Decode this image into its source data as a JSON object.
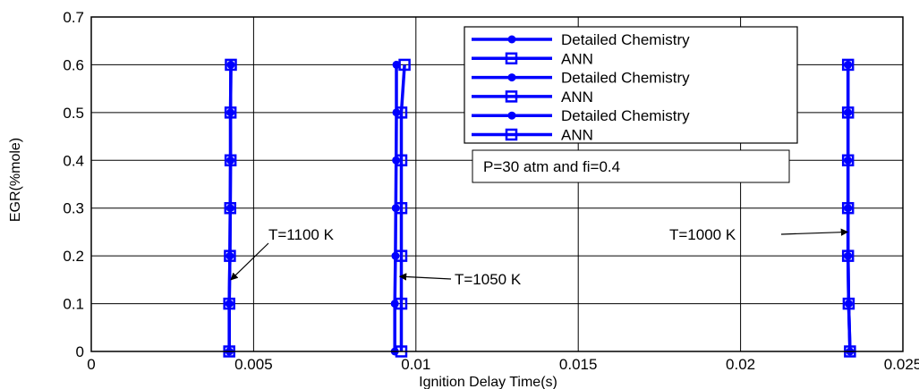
{
  "chart_data": {
    "type": "line",
    "title": "",
    "xlabel": "Ignition Delay Time(s)",
    "ylabel": "EGR(%mole)",
    "xlim": [
      0,
      0.025
    ],
    "ylim": [
      0,
      0.7
    ],
    "x_ticks": [
      0,
      0.005,
      0.01,
      0.015,
      0.02,
      0.025
    ],
    "x_tick_labels": [
      "0",
      "0.005",
      "0.01",
      "0.015",
      "0.02",
      "0.025"
    ],
    "y_ticks": [
      0,
      0.1,
      0.2,
      0.3,
      0.4,
      0.5,
      0.6,
      0.7
    ],
    "y_tick_labels": [
      "0",
      "0.1",
      "0.2",
      "0.3",
      "0.4",
      "0.5",
      "0.6",
      "0.7"
    ],
    "grid": true,
    "legend_position": "top-right",
    "series": [
      {
        "name": "Detailed Chemistry",
        "marker": "dot",
        "x": [
          0.00425,
          0.00425,
          0.00427,
          0.00428,
          0.00429,
          0.00429,
          0.0043
        ],
        "y": [
          0,
          0.1,
          0.2,
          0.3,
          0.4,
          0.5,
          0.6
        ]
      },
      {
        "name": "ANN",
        "marker": "square",
        "x": [
          0.00425,
          0.00425,
          0.00427,
          0.00428,
          0.00429,
          0.00429,
          0.0043
        ],
        "y": [
          0,
          0.1,
          0.2,
          0.3,
          0.4,
          0.5,
          0.6
        ]
      },
      {
        "name": "Detailed Chemistry",
        "marker": "dot",
        "x": [
          0.00935,
          0.00935,
          0.00937,
          0.00938,
          0.00939,
          0.0094,
          0.0094
        ],
        "y": [
          0,
          0.1,
          0.2,
          0.3,
          0.4,
          0.5,
          0.6
        ]
      },
      {
        "name": "ANN",
        "marker": "square",
        "x": [
          0.00955,
          0.00955,
          0.00955,
          0.00955,
          0.00955,
          0.00955,
          0.00965
        ],
        "y": [
          0,
          0.1,
          0.2,
          0.3,
          0.4,
          0.5,
          0.6
        ]
      },
      {
        "name": "Detailed Chemistry",
        "marker": "dot",
        "x": [
          0.02337,
          0.02333,
          0.02331,
          0.02331,
          0.02331,
          0.02331,
          0.02331
        ],
        "y": [
          0,
          0.1,
          0.2,
          0.3,
          0.4,
          0.5,
          0.6
        ]
      },
      {
        "name": "ANN",
        "marker": "square",
        "x": [
          0.02337,
          0.02333,
          0.02331,
          0.02331,
          0.02331,
          0.02331,
          0.02331
        ],
        "y": [
          0,
          0.1,
          0.2,
          0.3,
          0.4,
          0.5,
          0.6
        ]
      }
    ],
    "annotations": [
      {
        "text": "T=1100 K",
        "arrow_x": 0.0043,
        "arrow_y": 0.15
      },
      {
        "text": "T=1050 K",
        "arrow_x": 0.0095,
        "arrow_y": 0.157
      },
      {
        "text": "T=1000 K",
        "arrow_x": 0.0233,
        "arrow_y": 0.25
      }
    ],
    "text_box": "P=30 atm and fi=0.4",
    "colors": {
      "series": "#0000ff",
      "grid": "#000000",
      "axes": "#000000"
    }
  }
}
